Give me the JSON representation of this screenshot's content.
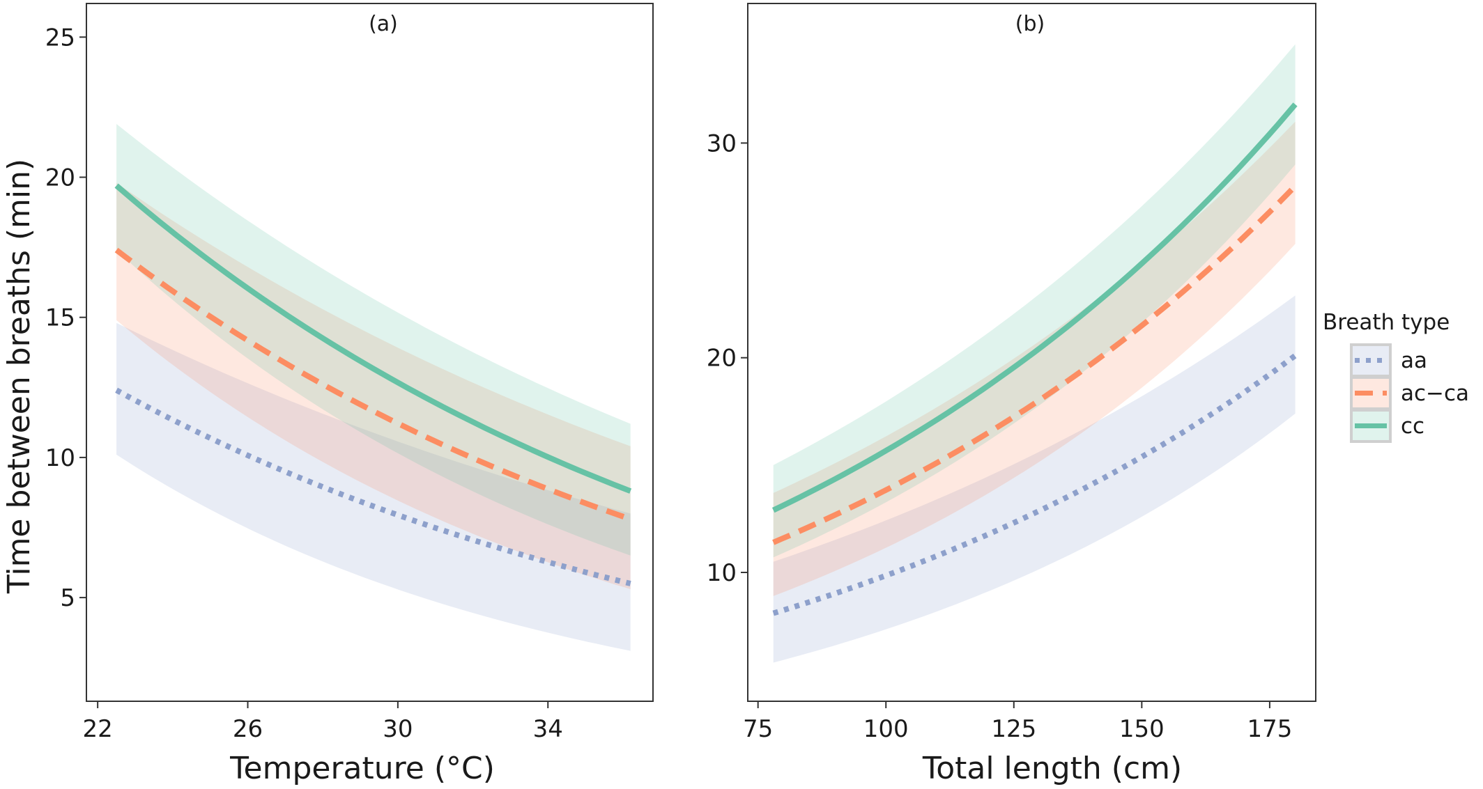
{
  "figure": {
    "ylabel": "Time between breaths (min)",
    "legend_title": "Breath type"
  },
  "legend": {
    "position": "right",
    "items": [
      {
        "label": "aa",
        "color": "#8DA0CB",
        "linestyle": "dotted"
      },
      {
        "label": "ac−ca",
        "color": "#FC8D62",
        "linestyle": "dashed"
      },
      {
        "label": "cc",
        "color": "#66C2A5",
        "linestyle": "solid"
      }
    ]
  },
  "chart_data": [
    {
      "type": "line",
      "panel_label": "(a)",
      "xlabel": "Temperature (°C)",
      "ylabel": "Time between breaths (min)",
      "xlim": [
        21.7,
        36.8
      ],
      "ylim": [
        1.3,
        26.2
      ],
      "xticks": [
        22,
        26,
        30,
        34
      ],
      "yticks": [
        5,
        10,
        15,
        20,
        25
      ],
      "grid": false,
      "series": [
        {
          "name": "aa",
          "color": "#8DA0CB",
          "linestyle": "dotted",
          "x": [
            22.5,
            36.2
          ],
          "y": [
            12.4,
            5.5
          ],
          "lower": [
            10.1,
            3.1
          ],
          "upper": [
            14.8,
            8.0
          ]
        },
        {
          "name": "ac−ca",
          "color": "#FC8D62",
          "linestyle": "dashed",
          "x": [
            22.5,
            36.2
          ],
          "y": [
            17.4,
            7.8
          ],
          "lower": [
            14.9,
            5.3
          ],
          "upper": [
            19.8,
            10.4
          ]
        },
        {
          "name": "cc",
          "color": "#66C2A5",
          "linestyle": "solid",
          "x": [
            22.5,
            36.2
          ],
          "y": [
            19.7,
            8.8
          ],
          "lower": [
            17.4,
            6.5
          ],
          "upper": [
            21.9,
            11.2
          ]
        }
      ]
    },
    {
      "type": "line",
      "panel_label": "(b)",
      "xlabel": "Total length (cm)",
      "ylabel": "",
      "xlim": [
        73,
        184
      ],
      "ylim": [
        4.0,
        36.5
      ],
      "xticks": [
        75,
        100,
        125,
        150,
        175
      ],
      "yticks": [
        10,
        20,
        30
      ],
      "grid": false,
      "series": [
        {
          "name": "aa",
          "color": "#8DA0CB",
          "linestyle": "dotted",
          "x": [
            78,
            180
          ],
          "y": [
            8.1,
            20.1
          ],
          "lower": [
            5.8,
            17.4
          ],
          "upper": [
            10.5,
            22.9
          ]
        },
        {
          "name": "ac−ca",
          "color": "#FC8D62",
          "linestyle": "dashed",
          "x": [
            78,
            180
          ],
          "y": [
            11.4,
            28.0
          ],
          "lower": [
            8.9,
            25.3
          ],
          "upper": [
            13.7,
            31.0
          ]
        },
        {
          "name": "cc",
          "color": "#66C2A5",
          "linestyle": "solid",
          "x": [
            78,
            180
          ],
          "y": [
            12.9,
            31.8
          ],
          "lower": [
            10.7,
            29.0
          ],
          "upper": [
            15.0,
            34.6
          ]
        }
      ]
    }
  ]
}
